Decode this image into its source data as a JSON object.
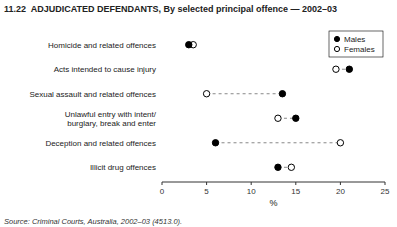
{
  "chart_data": {
    "type": "dot",
    "title": "11.22  ADJUDICATED DEFENDANTS, By selected principal offence — 2002–03",
    "orientation": "horizontal",
    "categories": [
      "Homicide and related offences",
      "Acts intended to cause injury",
      "Sexual assault and related offences",
      "Unlawful entry with intent/\nburglary, break and enter",
      "Deception and related offences",
      "Illicit drug offences"
    ],
    "series": [
      {
        "name": "Males",
        "color": "#000000",
        "marker": "circle",
        "values": [
          3.0,
          21.0,
          13.5,
          15.0,
          6.0,
          13.0
        ]
      },
      {
        "name": "Females",
        "color": "#000000",
        "marker": "open-circle",
        "values": [
          3.5,
          19.5,
          5.0,
          13.0,
          20.0,
          14.5
        ]
      }
    ],
    "color": "#888888",
    "line_style": "dashed",
    "xlabel": "%",
    "xlim": [
      0,
      25
    ],
    "xticks": [
      0,
      5,
      10,
      15,
      20,
      25
    ],
    "grid": false,
    "legend": "upper right",
    "annotations": [
      "Source: Criminal Courts, Australia, 2002–03 (4513.0)."
    ]
  }
}
